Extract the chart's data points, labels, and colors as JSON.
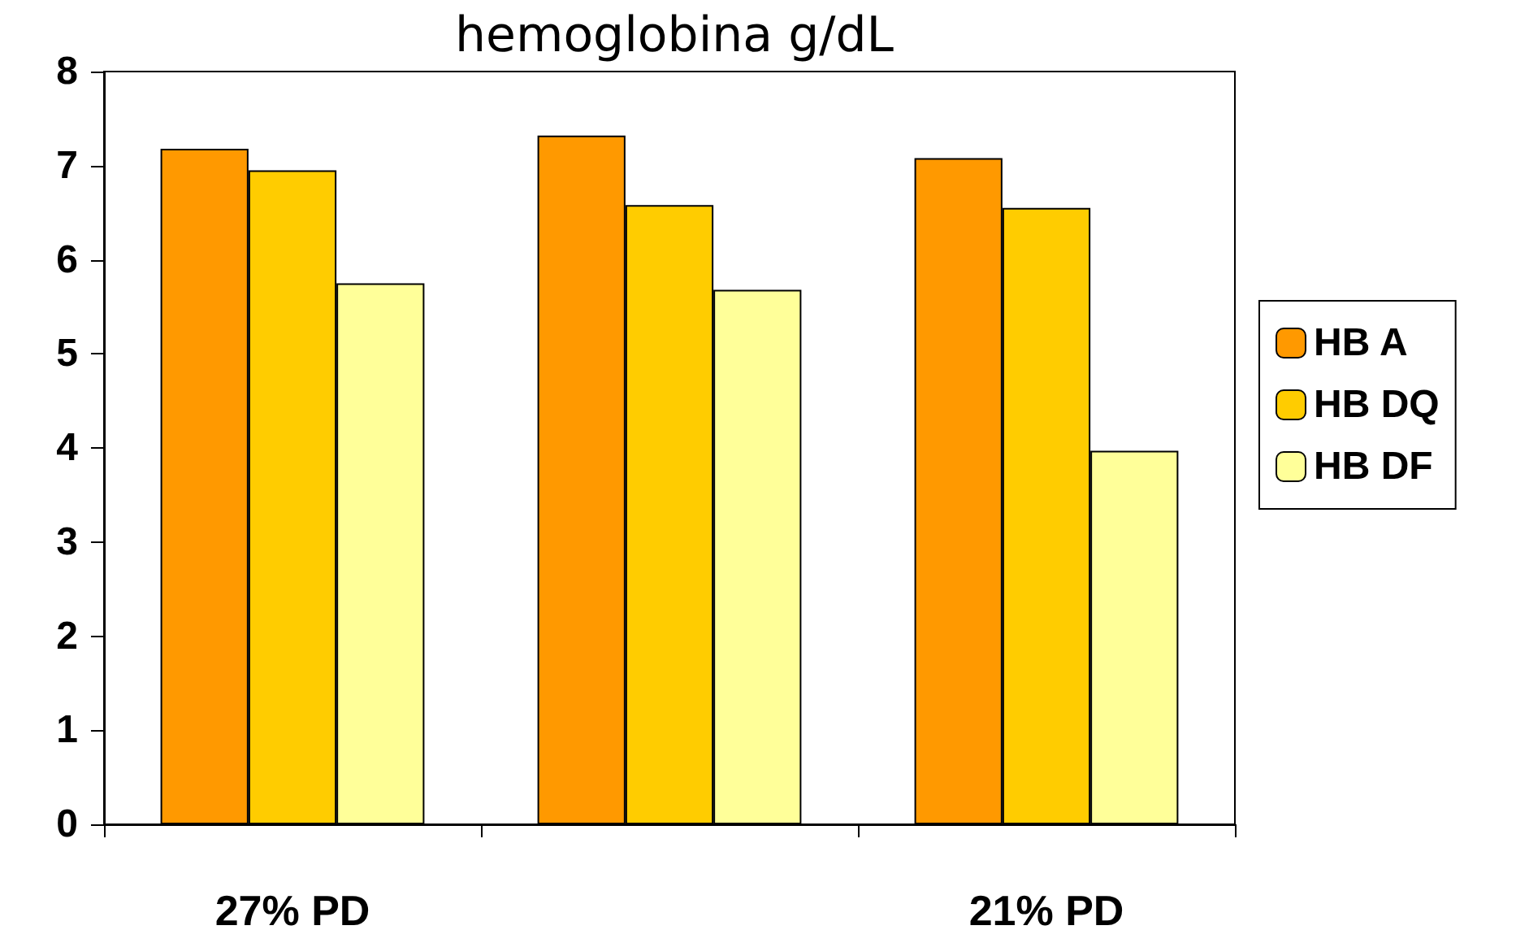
{
  "chart_data": {
    "type": "bar",
    "title": "hemoglobina g/dL",
    "categories": [
      "27% PD",
      null,
      "21% PD"
    ],
    "series": [
      {
        "name": "HB A",
        "color": "#ff9900",
        "values": [
          7.18,
          7.32,
          7.08
        ]
      },
      {
        "name": "HB DQ",
        "color": "#ffcc00",
        "values": [
          6.95,
          6.58,
          6.55
        ]
      },
      {
        "name": "HB DF",
        "color": "#ffff99",
        "values": [
          5.75,
          5.68,
          3.97
        ]
      }
    ],
    "ylim": [
      0,
      8
    ],
    "yticks": [
      0,
      1,
      2,
      3,
      4,
      5,
      6,
      7,
      8
    ],
    "grid": false,
    "legend": "right"
  }
}
